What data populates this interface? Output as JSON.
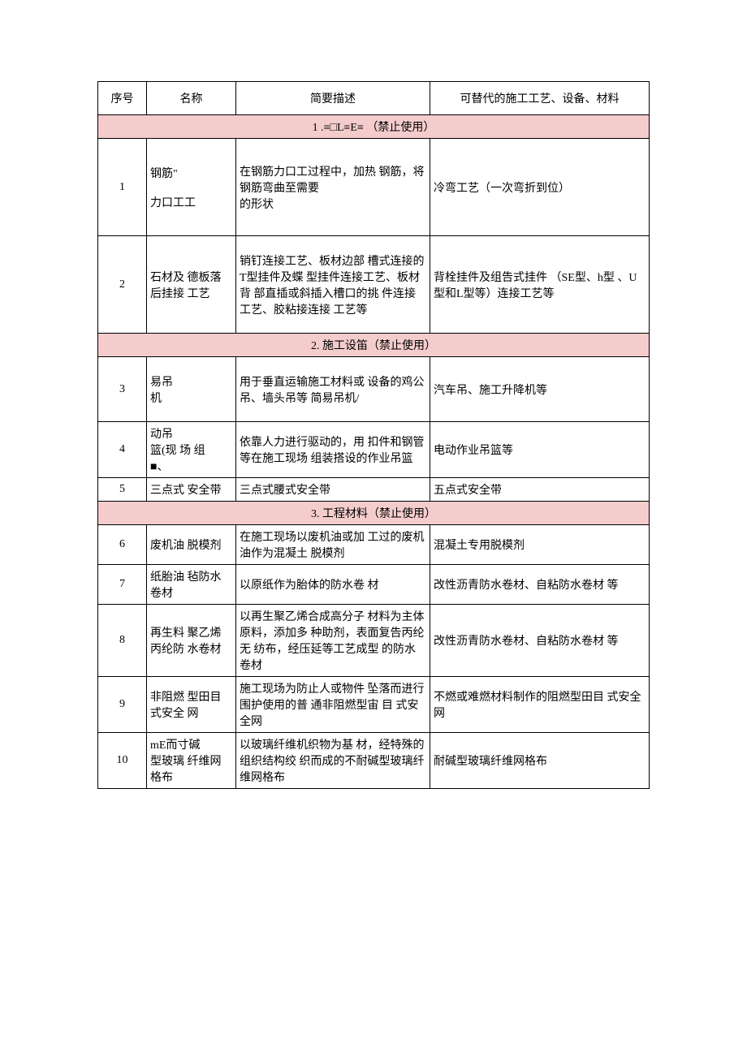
{
  "colors": {
    "section_bg": "#f4cccc",
    "border": "#000000",
    "text": "#000000",
    "page_bg": "#ffffff"
  },
  "headers": {
    "seq": "序号",
    "name": "名称",
    "desc": "简要描述",
    "alt": "可替代的施工工艺、设备、材料"
  },
  "section1": {
    "title": "1 .≡□L≡E≡ （禁止使用）",
    "rows": [
      {
        "seq": "1",
        "name": "钢筋\"\n\n力口工工",
        "desc": "在钢筋力口工过程中，加热 钢筋，将钢筋弯曲至需要\n的形状",
        "alt": "冷弯工艺（一次弯折到位）"
      },
      {
        "seq": "2",
        "name": "石材及   德板落   后挂接  工艺",
        "desc": "销钉连接工艺、板材边部 槽式连接的T型挂件及蝶   型挂件连接工艺、板材背   部直插或斜插入槽口的挑   件连接工艺、胶粘接连接  工艺等",
        "alt": "背栓挂件及组告式挂件 （SE型、h型  、U型和L型等）连接工艺等"
      }
    ]
  },
  "section2": {
    "title": "2. 施工设笛（禁止使用）",
    "rows": [
      {
        "seq": "3",
        "name": "     易吊\n机",
        "desc": "用于垂直运输施工材料或 设备的鸡公吊、墙头吊等 简易吊机/",
        "alt": "汽车吊、施工升降机等"
      },
      {
        "seq": "4",
        "name": "    动吊\n篮(现  场 组\n■、",
        "desc": "依靠人力进行驱动的，用  扣件和钢管等在施工现场  组装搭设的作业吊篮",
        "alt": "电动作业吊篮等"
      },
      {
        "seq": "5",
        "name": "三点式    安全带",
        "desc": "三点式腰式安全带",
        "alt": "五点式安全带"
      }
    ]
  },
  "section3": {
    "title": "3. 工程材料（禁止使用）",
    "rows": [
      {
        "seq": "6",
        "name": "废机油    脱模剂",
        "desc": "在施工现场以废机油或加  工过的废机油作为混凝土  脱模剂",
        "alt": "混凝土专用脱模剂"
      },
      {
        "seq": "7",
        "name": "纸胎油    毡防水  卷材",
        "desc": "以原纸作为胎体的防水卷  材",
        "alt": "改性沥青防水卷材、自粘防水卷材  等"
      },
      {
        "seq": "8",
        "name": "再生料     聚乙烯    丙纶防  水卷材",
        "desc": "以再生聚乙烯合成高分子  材料为主体原料，添加多  种助剂，表面复告丙纶无 纺布，经压延等工艺成型 的防水卷材",
        "alt": "改性沥青防水卷材、自粘防水卷材  等"
      },
      {
        "seq": "9",
        "name": "非阻燃    型田目     式安全  网",
        "desc": "施工现场为防止人或物件  坠落而进行围护使用的普  通非阻燃型宙  目  式安全网",
        "alt": "不燃或难燃材料制作的阻燃型田目  式安全网"
      },
      {
        "seq": "10",
        "name": "mE而寸碱\n型玻璃    纤维网  格布",
        "desc": "以玻璃纤维机织物为基  材，经特殊的组织结构绞  织而成的不耐碱型玻璃纤  维网格布",
        "alt": "耐碱型玻璃纤维网格布"
      }
    ]
  }
}
